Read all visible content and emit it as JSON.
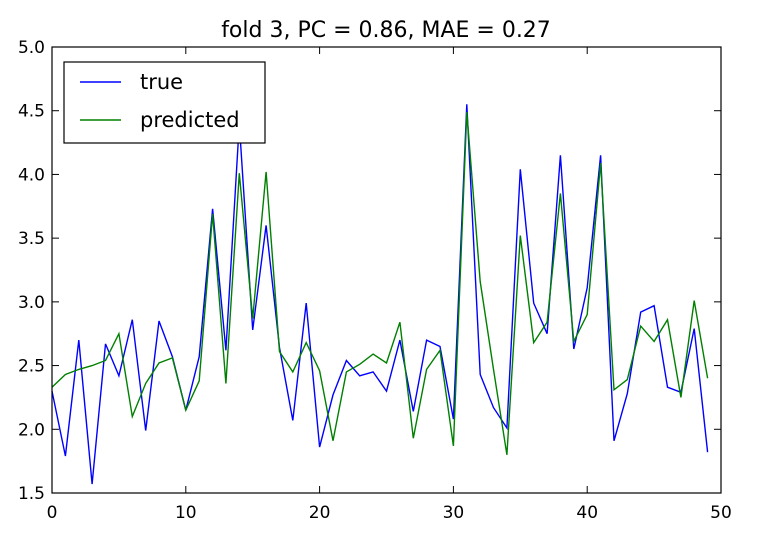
{
  "chart_data": {
    "type": "line",
    "title": "fold 3, PC = 0.86, MAE = 0.27",
    "xlabel": "",
    "ylabel": "",
    "xlim": [
      0,
      50
    ],
    "ylim": [
      1.5,
      5.0
    ],
    "xticks": [
      0,
      10,
      20,
      30,
      40,
      50
    ],
    "xtick_labels": [
      "0",
      "10",
      "20",
      "30",
      "40",
      "50"
    ],
    "yticks": [
      1.5,
      2.0,
      2.5,
      3.0,
      3.5,
      4.0,
      4.5,
      5.0
    ],
    "ytick_labels": [
      "1.5",
      "2.0",
      "2.5",
      "3.0",
      "3.5",
      "4.0",
      "4.5",
      "5.0"
    ],
    "grid": false,
    "legend_position": "top-left",
    "x": [
      0,
      1,
      2,
      3,
      4,
      5,
      6,
      7,
      8,
      9,
      10,
      11,
      12,
      13,
      14,
      15,
      16,
      17,
      18,
      19,
      20,
      21,
      22,
      23,
      24,
      25,
      26,
      27,
      28,
      29,
      30,
      31,
      32,
      33,
      34,
      35,
      36,
      37,
      38,
      39,
      40,
      41,
      42,
      43,
      44,
      45,
      46,
      47,
      48,
      49
    ],
    "series": [
      {
        "name": "true",
        "color": "#0000ff",
        "values": [
          2.3,
          1.79,
          2.7,
          1.57,
          2.67,
          2.42,
          2.86,
          1.99,
          2.85,
          2.57,
          2.15,
          2.57,
          3.73,
          2.62,
          4.4,
          2.78,
          3.6,
          2.64,
          2.07,
          2.99,
          1.86,
          2.27,
          2.54,
          2.42,
          2.45,
          2.3,
          2.7,
          2.14,
          2.7,
          2.65,
          2.08,
          4.55,
          2.43,
          2.17,
          2.01,
          4.04,
          2.99,
          2.75,
          4.15,
          2.63,
          3.11,
          4.15,
          1.91,
          2.28,
          2.92,
          2.97,
          2.33,
          2.29,
          2.79,
          1.82
        ]
      },
      {
        "name": "predicted",
        "color": "#008000",
        "values": [
          2.33,
          2.43,
          2.47,
          2.5,
          2.54,
          2.75,
          2.1,
          2.36,
          2.52,
          2.56,
          2.15,
          2.38,
          3.69,
          2.36,
          4.01,
          2.87,
          4.02,
          2.61,
          2.45,
          2.68,
          2.46,
          1.91,
          2.45,
          2.51,
          2.59,
          2.52,
          2.84,
          1.93,
          2.47,
          2.62,
          1.87,
          4.49,
          3.16,
          2.47,
          1.8,
          3.52,
          2.68,
          2.84,
          3.85,
          2.69,
          2.9,
          4.09,
          2.31,
          2.39,
          2.81,
          2.69,
          2.86,
          2.25,
          3.01,
          2.4
        ]
      }
    ]
  }
}
